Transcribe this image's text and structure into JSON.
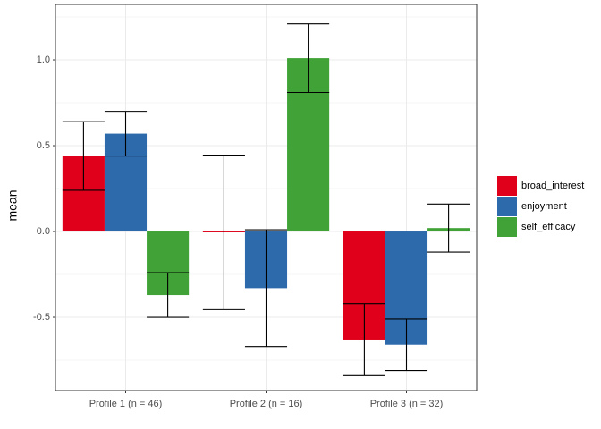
{
  "chart_data": {
    "type": "bar",
    "y_label": "mean",
    "categories": [
      "Profile 1 (n = 46)",
      "Profile 2 (n = 16)",
      "Profile 3 (n = 32)"
    ],
    "series": [
      {
        "name": "broad_interest",
        "color": "#e0001b",
        "values": [
          0.44,
          -0.005,
          -0.63
        ],
        "errors": [
          0.2,
          0.45,
          0.21
        ]
      },
      {
        "name": "enjoyment",
        "color": "#2d6aab",
        "values": [
          0.57,
          -0.33,
          -0.66
        ],
        "errors": [
          0.13,
          0.34,
          0.15
        ]
      },
      {
        "name": "self_efficacy",
        "color": "#41a337",
        "values": [
          -0.37,
          1.01,
          0.02
        ],
        "errors": [
          0.13,
          0.2,
          0.14
        ]
      }
    ],
    "ylim": [
      -0.927,
      1.323
    ],
    "yticks": [
      -0.5,
      {
        "value": 0,
        "label": "0.0"
      },
      0.5,
      {
        "value": 1,
        "label": "1.0"
      }
    ],
    "grid": true
  }
}
